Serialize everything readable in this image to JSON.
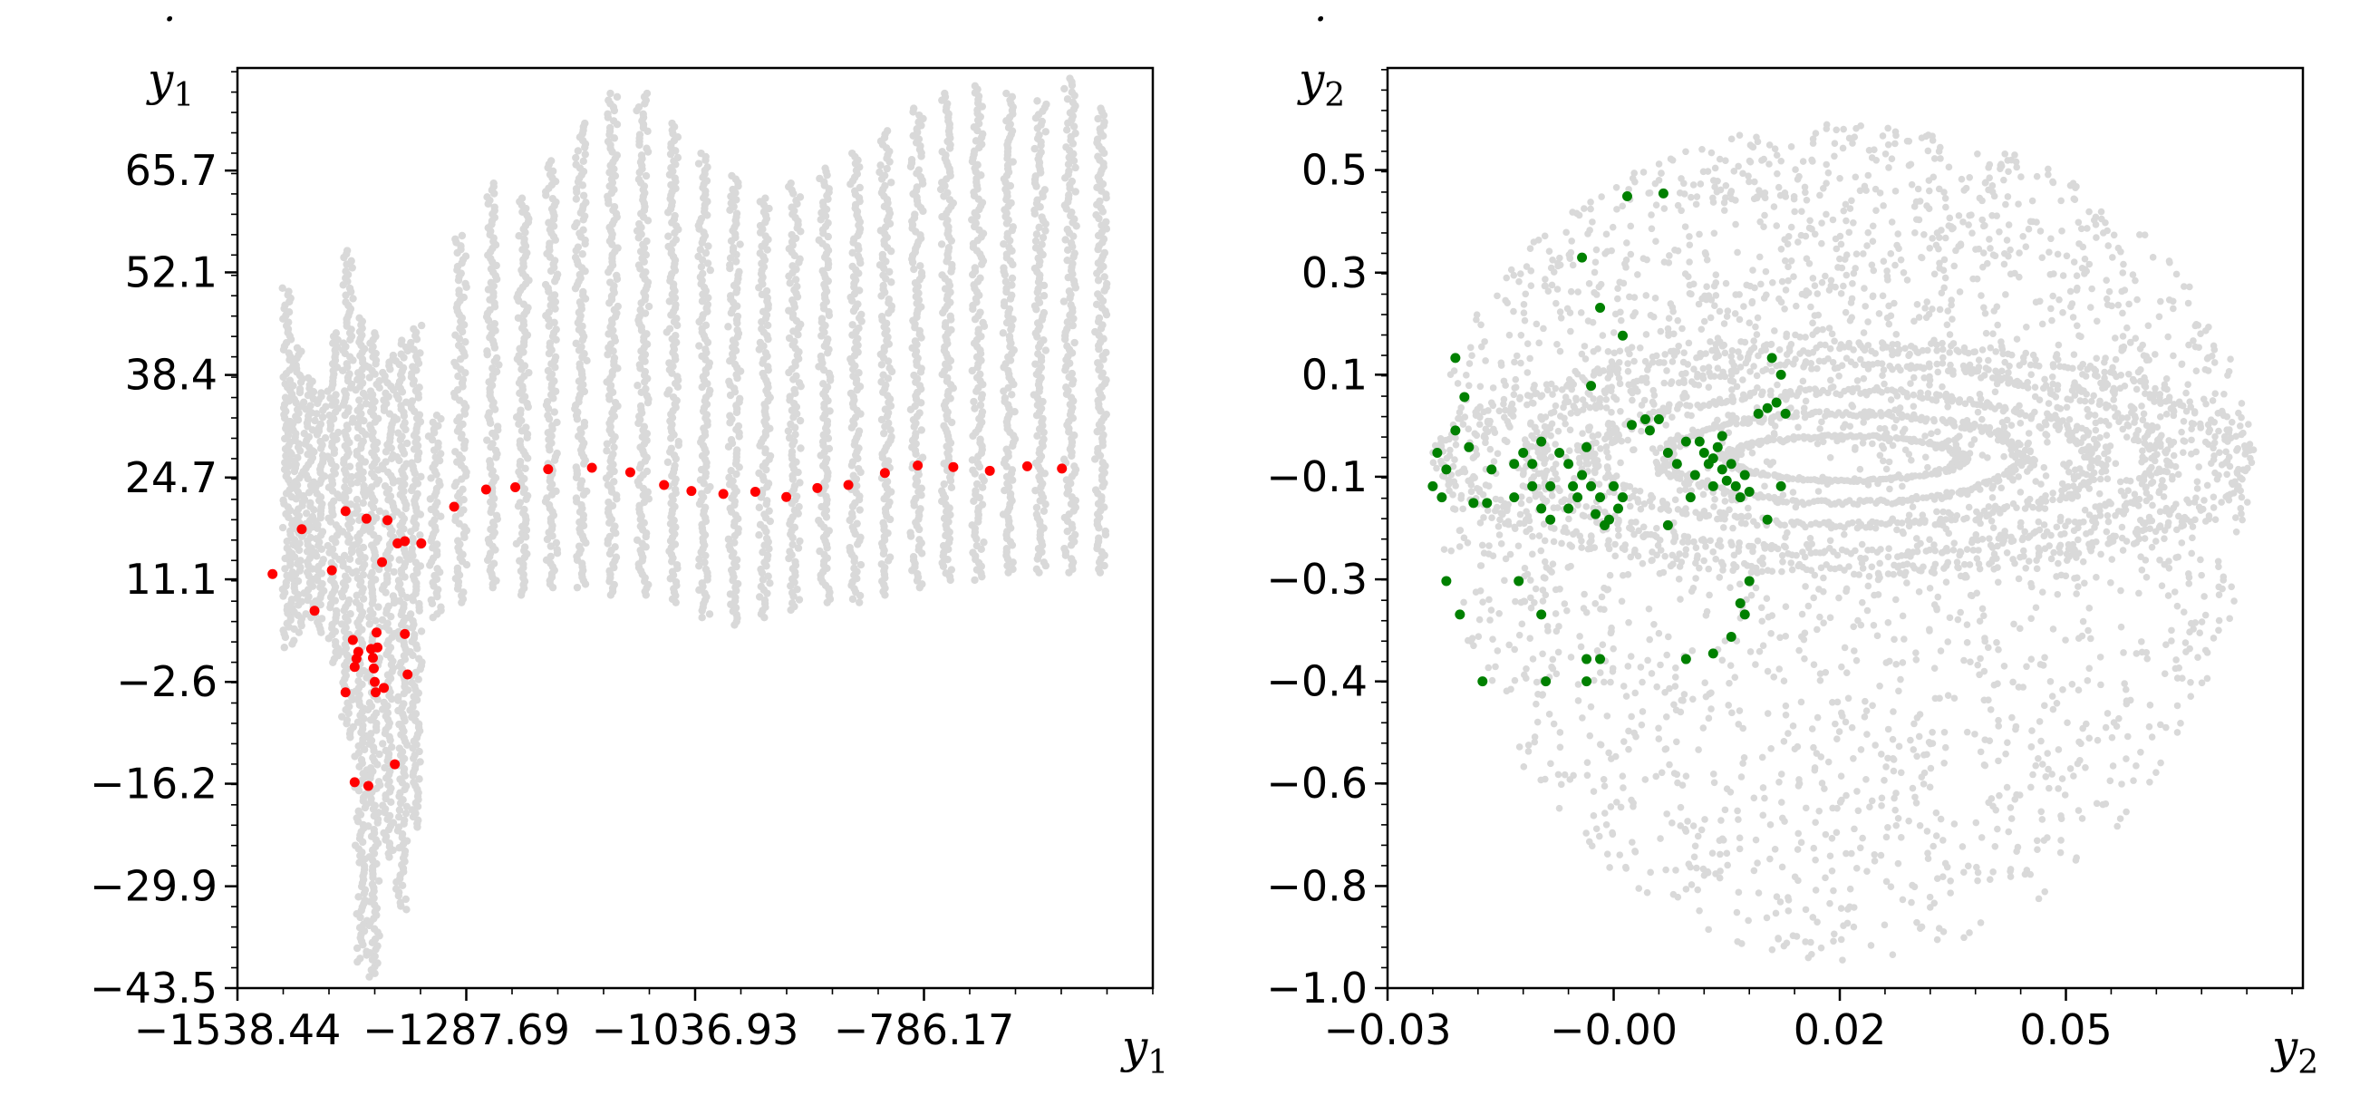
{
  "chart_data": [
    {
      "type": "scatter",
      "xlabel": "y",
      "xlabel_sub": "1",
      "ylabel": "y",
      "ylabel_sub": "1",
      "ylabel_dot": "˙",
      "xlim": [
        -1538.44,
        -535.41
      ],
      "ylim": [
        -43.5,
        79.4
      ],
      "xticks": [
        -1538.44,
        -1287.69,
        -1036.93,
        -786.17
      ],
      "xtick_labels": [
        "−1538.44",
        "−1287.69",
        "−1036.93",
        "−786.17"
      ],
      "yticks": [
        -43.5,
        -29.9,
        -16.2,
        -2.6,
        11.1,
        24.7,
        38.4,
        52.1,
        65.7
      ],
      "ytick_labels": [
        "−43.5",
        "−29.9",
        "−16.2",
        "−2.6",
        "11.1",
        "24.7",
        "38.4",
        "52.1",
        "65.7"
      ],
      "grid": false,
      "series": [
        {
          "role": "background",
          "color": "#d9d9d9",
          "bands": [
            {
              "x": -1483,
              "ymin": 2,
              "ymax": 50
            },
            {
              "x": -1473,
              "ymin": 4,
              "ymax": 42
            },
            {
              "x": -1460,
              "ymin": 6,
              "ymax": 38
            },
            {
              "x": -1448,
              "ymin": 4,
              "ymax": 36
            },
            {
              "x": -1433,
              "ymin": 0,
              "ymax": 44
            },
            {
              "x": -1418,
              "ymin": -10,
              "ymax": 55
            },
            {
              "x": -1403,
              "ymin": -40,
              "ymax": 46
            },
            {
              "x": -1389,
              "ymin": -42,
              "ymax": 44
            },
            {
              "x": -1373,
              "ymin": -26,
              "ymax": 41
            },
            {
              "x": -1358,
              "ymin": -33,
              "ymax": 43
            },
            {
              "x": -1343,
              "ymin": -22,
              "ymax": 45
            },
            {
              "x": -1322,
              "ymin": 6,
              "ymax": 33
            },
            {
              "x": -1294,
              "ymin": 8,
              "ymax": 57
            },
            {
              "x": -1259,
              "ymin": 10,
              "ymax": 64
            },
            {
              "x": -1226,
              "ymin": 9,
              "ymax": 62
            },
            {
              "x": -1194,
              "ymin": 10,
              "ymax": 67
            },
            {
              "x": -1162,
              "ymin": 10,
              "ymax": 72
            },
            {
              "x": -1128,
              "ymin": 9,
              "ymax": 76
            },
            {
              "x": -1094,
              "ymin": 9,
              "ymax": 76
            },
            {
              "x": -1061,
              "ymin": 8,
              "ymax": 72
            },
            {
              "x": -1027,
              "ymin": 6,
              "ymax": 68
            },
            {
              "x": -994,
              "ymin": 5,
              "ymax": 65
            },
            {
              "x": -961,
              "ymin": 6,
              "ymax": 62
            },
            {
              "x": -928,
              "ymin": 7,
              "ymax": 64
            },
            {
              "x": -895,
              "ymin": 8,
              "ymax": 66
            },
            {
              "x": -861,
              "ymin": 8,
              "ymax": 68
            },
            {
              "x": -828,
              "ymin": 9,
              "ymax": 71
            },
            {
              "x": -794,
              "ymin": 10,
              "ymax": 74
            },
            {
              "x": -761,
              "ymin": 11,
              "ymax": 76
            },
            {
              "x": -727,
              "ymin": 11,
              "ymax": 77
            },
            {
              "x": -693,
              "ymin": 12,
              "ymax": 76
            },
            {
              "x": -659,
              "ymin": 12,
              "ymax": 75
            },
            {
              "x": -626,
              "ymin": 12,
              "ymax": 78
            },
            {
              "x": -592,
              "ymin": 12,
              "ymax": 74
            }
          ]
        },
        {
          "role": "highlight",
          "color": "#ff0000",
          "points": [
            [
              -1500,
              11.8
            ],
            [
              -1468,
              17.8
            ],
            [
              -1454,
              6.9
            ],
            [
              -1435,
              12.3
            ],
            [
              -1420,
              20.2
            ],
            [
              -1412,
              3.0
            ],
            [
              -1410,
              -0.6
            ],
            [
              -1408,
              0.5
            ],
            [
              -1406,
              1.4
            ],
            [
              -1420,
              -4.0
            ],
            [
              -1410,
              -16.0
            ],
            [
              -1397,
              19.2
            ],
            [
              -1392,
              1.8
            ],
            [
              -1390,
              0.6
            ],
            [
              -1389,
              -0.8
            ],
            [
              -1388,
              -2.6
            ],
            [
              -1387,
              -4.0
            ],
            [
              -1386,
              4.0
            ],
            [
              -1385,
              2.0
            ],
            [
              -1380,
              13.4
            ],
            [
              -1378,
              -3.4
            ],
            [
              -1374,
              19.0
            ],
            [
              -1366,
              -13.6
            ],
            [
              -1363,
              15.9
            ],
            [
              -1355,
              16.2
            ],
            [
              -1355,
              3.8
            ],
            [
              -1352,
              -1.6
            ],
            [
              -1337,
              15.9
            ],
            [
              -1395,
              -16.5
            ],
            [
              -1301,
              20.8
            ],
            [
              -1266,
              23.1
            ],
            [
              -1234,
              23.4
            ],
            [
              -1198,
              25.8
            ],
            [
              -1150,
              26.0
            ],
            [
              -1108,
              25.4
            ],
            [
              -1071,
              23.7
            ],
            [
              -1041,
              22.9
            ],
            [
              -1006,
              22.5
            ],
            [
              -971,
              22.8
            ],
            [
              -937,
              22.1
            ],
            [
              -903,
              23.3
            ],
            [
              -869,
              23.7
            ],
            [
              -829,
              25.3
            ],
            [
              -793,
              26.3
            ],
            [
              -754,
              26.1
            ],
            [
              -714,
              25.6
            ],
            [
              -673,
              26.2
            ],
            [
              -635,
              25.9
            ]
          ]
        }
      ]
    },
    {
      "type": "scatter",
      "xlabel": "y",
      "xlabel_sub": "2",
      "ylabel": "y",
      "ylabel_sub": "2",
      "ylabel_dot": "˙",
      "xlim": [
        -0.03,
        0.0712
      ],
      "ylim": [
        -1.0,
        0.65
      ],
      "xticks": [
        -0.03,
        -0.005,
        0.02,
        0.045
      ],
      "xtick_labels": [
        "−0.03",
        "−0.00",
        "0.02",
        "0.05"
      ],
      "yticks": [
        -1.0,
        -0.817,
        -0.633,
        -0.45,
        -0.267,
        -0.083,
        0.1,
        0.283,
        0.467
      ],
      "ytick_labels": [
        "−1.0",
        "−0.8",
        "−0.6",
        "−0.4",
        "−0.3",
        "−0.1",
        "0.1",
        "0.3",
        "0.5"
      ],
      "grid": false,
      "series": [
        {
          "role": "background",
          "color": "#d9d9d9",
          "cloud": {
            "center": [
              0.0205,
              -0.05
            ],
            "outer_rx": 0.045,
            "outer_ry_top": 0.6,
            "outer_ry_bottom": 0.9,
            "ring_rx": [
              0.043,
              0.035,
              0.028,
              0.02,
              0.013
            ],
            "ring_ry": [
              0.2,
              0.17,
              0.12,
              0.08,
              0.04
            ]
          }
        },
        {
          "role": "highlight",
          "color": "#008000",
          "points": [
            [
              -0.0035,
              0.42
            ],
            [
              0.0005,
              0.425
            ],
            [
              -0.0085,
              0.31
            ],
            [
              -0.0065,
              0.22
            ],
            [
              -0.004,
              0.17
            ],
            [
              -0.0225,
              0.13
            ],
            [
              -0.0075,
              0.08
            ],
            [
              -0.0015,
              0.02
            ],
            [
              0.0125,
              0.13
            ],
            [
              0.0135,
              0.1
            ],
            [
              -0.0215,
              0.06
            ],
            [
              -0.0225,
              0.0
            ],
            [
              -0.021,
              -0.03
            ],
            [
              -0.0185,
              -0.07
            ],
            [
              -0.0235,
              -0.07
            ],
            [
              -0.0245,
              -0.04
            ],
            [
              -0.025,
              -0.1
            ],
            [
              -0.024,
              -0.12
            ],
            [
              -0.0205,
              -0.13
            ],
            [
              -0.019,
              -0.13
            ],
            [
              -0.016,
              -0.06
            ],
            [
              -0.015,
              -0.04
            ],
            [
              -0.014,
              -0.06
            ],
            [
              -0.013,
              -0.02
            ],
            [
              -0.012,
              -0.1
            ],
            [
              -0.011,
              -0.04
            ],
            [
              -0.01,
              -0.06
            ],
            [
              -0.0095,
              -0.1
            ],
            [
              -0.009,
              -0.12
            ],
            [
              -0.0085,
              -0.08
            ],
            [
              -0.008,
              -0.03
            ],
            [
              -0.0075,
              -0.1
            ],
            [
              -0.007,
              -0.15
            ],
            [
              -0.0065,
              -0.12
            ],
            [
              -0.006,
              -0.17
            ],
            [
              -0.0055,
              -0.16
            ],
            [
              -0.0045,
              -0.14
            ],
            [
              -0.004,
              -0.12
            ],
            [
              -0.005,
              -0.1
            ],
            [
              -0.014,
              -0.1
            ],
            [
              -0.013,
              -0.14
            ],
            [
              -0.012,
              -0.16
            ],
            [
              -0.01,
              -0.14
            ],
            [
              -0.016,
              -0.12
            ],
            [
              -0.003,
              0.01
            ],
            [
              -0.001,
              0.0
            ],
            [
              0.0,
              0.02
            ],
            [
              0.001,
              -0.04
            ],
            [
              0.002,
              -0.06
            ],
            [
              0.003,
              -0.02
            ],
            [
              0.004,
              -0.08
            ],
            [
              0.005,
              -0.04
            ],
            [
              0.0055,
              -0.06
            ],
            [
              0.006,
              -0.05
            ],
            [
              0.0065,
              -0.03
            ],
            [
              0.007,
              -0.07
            ],
            [
              0.0075,
              -0.09
            ],
            [
              0.008,
              -0.06
            ],
            [
              0.0085,
              -0.1
            ],
            [
              0.009,
              -0.12
            ],
            [
              0.0095,
              -0.08
            ],
            [
              0.01,
              -0.11
            ],
            [
              0.0045,
              -0.02
            ],
            [
              0.0035,
              -0.12
            ],
            [
              0.001,
              -0.17
            ],
            [
              0.006,
              -0.1
            ],
            [
              0.011,
              0.03
            ],
            [
              0.012,
              0.04
            ],
            [
              0.013,
              0.05
            ],
            [
              0.014,
              0.03
            ],
            [
              0.0135,
              -0.1
            ],
            [
              0.012,
              -0.16
            ],
            [
              0.0095,
              -0.33
            ],
            [
              0.009,
              -0.31
            ],
            [
              0.01,
              -0.27
            ],
            [
              0.008,
              -0.37
            ],
            [
              0.006,
              -0.4
            ],
            [
              0.003,
              -0.41
            ],
            [
              0.007,
              -0.01
            ],
            [
              -0.0235,
              -0.27
            ],
            [
              -0.022,
              -0.33
            ],
            [
              -0.0155,
              -0.27
            ],
            [
              -0.013,
              -0.33
            ],
            [
              -0.008,
              -0.41
            ],
            [
              -0.0065,
              -0.41
            ],
            [
              -0.0195,
              -0.45
            ],
            [
              -0.008,
              -0.45
            ],
            [
              -0.0125,
              -0.45
            ]
          ]
        }
      ]
    }
  ]
}
